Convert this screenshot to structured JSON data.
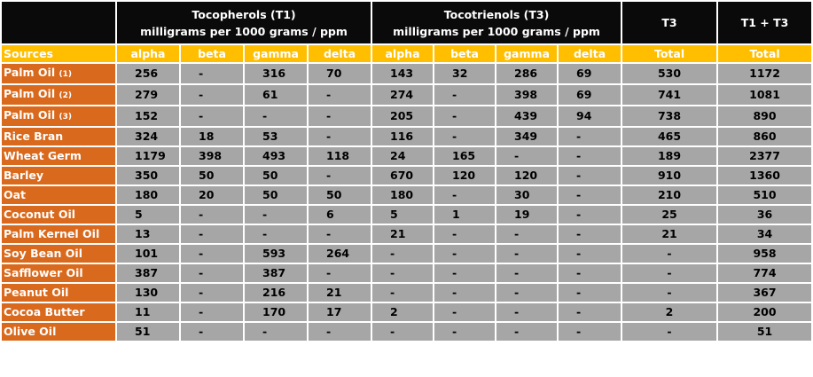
{
  "header": {
    "tocopherols_title": "Tocopherols (T1)",
    "tocopherols_unit": "milligrams per 1000 grams / ppm",
    "tocotrienols_title": "Tocotrienols (T3)",
    "tocotrienols_unit": "milligrams per 1000 grams / ppm",
    "t3": "T3",
    "t1t3": "T1 + T3"
  },
  "subheader": [
    "Sources",
    "alpha",
    "beta",
    "gamma",
    "delta",
    "alpha",
    "beta",
    "gamma",
    "delta",
    "Total",
    "Total"
  ],
  "rows": [
    {
      "source": "Palm Oil",
      "note": "(1)",
      "values": [
        "256",
        "-",
        "316",
        "70",
        "143",
        "32",
        "286",
        "69",
        "530",
        "1172"
      ]
    },
    {
      "source": "Palm Oil",
      "note": "(2)",
      "values": [
        "279",
        "-",
        "61",
        "-",
        "274",
        "-",
        "398",
        "69",
        "741",
        "1081"
      ]
    },
    {
      "source": "Palm Oil",
      "note": "(3)",
      "values": [
        "152",
        "-",
        "-",
        "-",
        "205",
        "-",
        "439",
        "94",
        "738",
        "890"
      ]
    },
    {
      "source": "Rice Bran",
      "note": "",
      "values": [
        "324",
        "18",
        "53",
        "-",
        "116",
        "-",
        "349",
        "-",
        "465",
        "860"
      ]
    },
    {
      "source": "Wheat Germ",
      "note": "",
      "values": [
        "1179",
        "398",
        "493",
        "118",
        "24",
        "165",
        "-",
        "-",
        "189",
        "2377"
      ]
    },
    {
      "source": "Barley",
      "note": "",
      "values": [
        "350",
        "50",
        "50",
        "-",
        "670",
        "120",
        "120",
        "-",
        "910",
        "1360"
      ]
    },
    {
      "source": "Oat",
      "note": "",
      "values": [
        "180",
        "20",
        "50",
        "50",
        "180",
        "-",
        "30",
        "-",
        "210",
        "510"
      ]
    },
    {
      "source": "Coconut Oil",
      "note": "",
      "values": [
        "5",
        "-",
        "-",
        "6",
        "5",
        "1",
        "19",
        "-",
        "25",
        "36"
      ]
    },
    {
      "source": "Palm Kernel Oil",
      "note": "",
      "values": [
        "13",
        "-",
        "-",
        "-",
        "21",
        "-",
        "-",
        "-",
        "21",
        "34"
      ]
    },
    {
      "source": "Soy Bean Oil",
      "note": "",
      "values": [
        "101",
        "-",
        "593",
        "264",
        "-",
        "-",
        "-",
        "-",
        "-",
        "958"
      ]
    },
    {
      "source": "Safflower Oil",
      "note": "",
      "values": [
        "387",
        "-",
        "387",
        "-",
        "-",
        "-",
        "-",
        "-",
        "-",
        "774"
      ]
    },
    {
      "source": "Peanut Oil",
      "note": "",
      "values": [
        "130",
        "-",
        "216",
        "21",
        "-",
        "-",
        "-",
        "-",
        "-",
        "367"
      ]
    },
    {
      "source": "Cocoa Butter",
      "note": "",
      "values": [
        "11",
        "-",
        "170",
        "17",
        "2",
        "-",
        "-",
        "-",
        "2",
        "200"
      ]
    },
    {
      "source": "Olive Oil",
      "note": "",
      "values": [
        "51",
        "-",
        "-",
        "-",
        "-",
        "-",
        "-",
        "-",
        "-",
        "51"
      ]
    }
  ]
}
